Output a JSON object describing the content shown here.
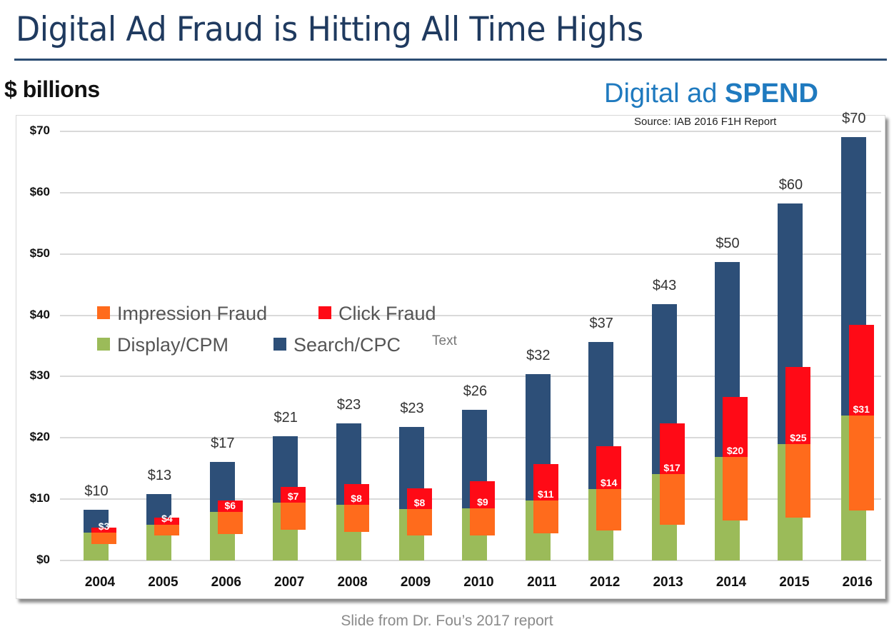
{
  "slide": {
    "title": "Digital Ad Fraud is Hitting All Time Highs",
    "units_label": "$ billions",
    "spend_title_regular": "Digital ad ",
    "spend_title_bold": "SPEND",
    "source": "Source: IAB 2016 F1H Report",
    "text_placeholder": "Text",
    "caption": "Slide from Dr. Fou’s 2017 report"
  },
  "colors": {
    "title": "#1f3a5f",
    "spend_title": "#1f7abf",
    "display_cpm": "#9bbb59",
    "search_cpc": "#2d4f78",
    "impression_fraud": "#ff6b1c",
    "click_fraud": "#ff0a16"
  },
  "legend": [
    {
      "label": "Impression Fraud",
      "color": "#ff6b1c"
    },
    {
      "label": "Click Fraud",
      "color": "#ff0a16"
    },
    {
      "label": "Display/CPM",
      "color": "#9bbb59"
    },
    {
      "label": "Search/CPC",
      "color": "#2d4f78"
    }
  ],
  "chart_data": {
    "type": "bar",
    "title": "Digital ad SPEND",
    "subtitle": "Source: IAB 2016 F1H Report",
    "xlabel": "",
    "ylabel": "$ billions",
    "ylim": [
      0,
      70
    ],
    "yticks": [
      "$0",
      "$10",
      "$20",
      "$30",
      "$40",
      "$50",
      "$60",
      "$70"
    ],
    "grid": true,
    "legend_position": "inside-left-middle",
    "categories": [
      "2004",
      "2005",
      "2006",
      "2007",
      "2008",
      "2009",
      "2010",
      "2011",
      "2012",
      "2013",
      "2014",
      "2015",
      "2016"
    ],
    "total_labels": [
      "$10",
      "$13",
      "$17",
      "$21",
      "$23",
      "$23",
      "$26",
      "$32",
      "$37",
      "$43",
      "$50",
      "$60",
      "$70"
    ],
    "fraud_labels": [
      "$3",
      "$4",
      "$6",
      "$7",
      "$8",
      "$8",
      "$9",
      "$11",
      "$14",
      "$17",
      "$20",
      "$25",
      "$31"
    ],
    "series": [
      {
        "name": "Display/CPM",
        "stack": "spend",
        "values": [
          4.5,
          5.8,
          7.9,
          9.4,
          9.1,
          8.4,
          8.5,
          9.8,
          11.6,
          14.1,
          16.9,
          19.0,
          23.6
        ]
      },
      {
        "name": "Search/CPC",
        "stack": "spend",
        "values": [
          3.8,
          5.0,
          8.2,
          10.9,
          13.3,
          13.4,
          16.1,
          20.6,
          24.0,
          27.7,
          31.8,
          39.2,
          45.5
        ]
      },
      {
        "name": "Impression Fraud",
        "stack": "fraud",
        "range": [
          [
            2.7,
            4.5
          ],
          [
            4.1,
            5.8
          ],
          [
            4.3,
            7.9
          ],
          [
            5.0,
            9.4
          ],
          [
            4.7,
            9.1
          ],
          [
            4.1,
            8.4
          ],
          [
            4.1,
            8.5
          ],
          [
            4.4,
            9.8
          ],
          [
            4.9,
            11.6
          ],
          [
            5.8,
            14.1
          ],
          [
            6.5,
            16.9
          ],
          [
            7.0,
            19.0
          ],
          [
            8.2,
            23.6
          ]
        ]
      },
      {
        "name": "Click Fraud",
        "stack": "fraud",
        "range": [
          [
            4.5,
            5.4
          ],
          [
            5.8,
            7.0
          ],
          [
            7.9,
            9.8
          ],
          [
            9.4,
            12.0
          ],
          [
            9.1,
            12.5
          ],
          [
            8.4,
            11.8
          ],
          [
            8.5,
            12.9
          ],
          [
            9.8,
            15.7
          ],
          [
            11.6,
            18.6
          ],
          [
            14.1,
            22.4
          ],
          [
            16.9,
            26.7
          ],
          [
            19.0,
            31.6
          ],
          [
            23.6,
            38.4
          ]
        ]
      }
    ],
    "spend_top": [
      8.3,
      10.8,
      16.1,
      20.3,
      22.4,
      21.8,
      24.6,
      30.4,
      35.6,
      41.8,
      48.7,
      58.2,
      69.1
    ]
  }
}
